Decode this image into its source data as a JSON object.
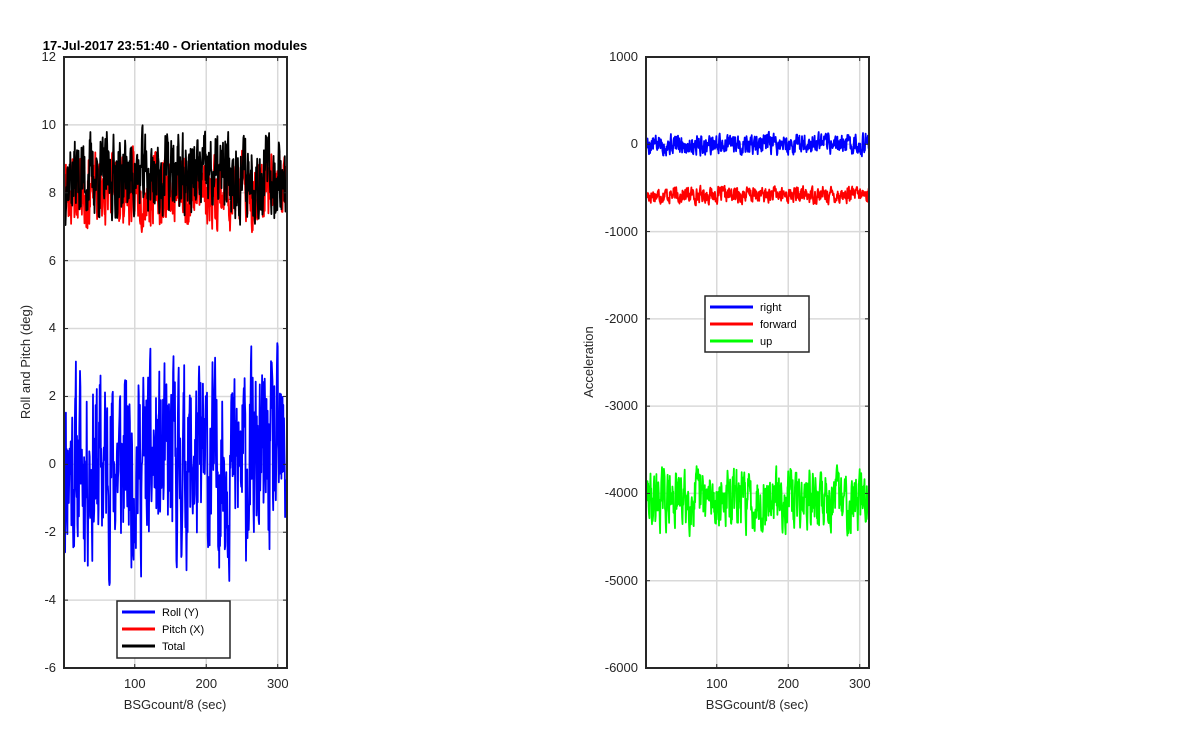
{
  "chart_data": [
    {
      "type": "line",
      "title": "17-Jul-2017 23:51:40 - Orientation modules",
      "xlabel": "BSGcount/8 (sec)",
      "ylabel": "Roll and Pitch (deg)",
      "xlim": [
        1,
        313
      ],
      "ylim": [
        -6,
        12
      ],
      "xticks": [
        "100",
        "200",
        "300"
      ],
      "yticks": [
        "-6",
        "-4",
        "-2",
        "0",
        "2",
        "4",
        "6",
        "8",
        "10",
        "12"
      ],
      "grid": true,
      "legend_position": "bottom-center",
      "series": [
        {
          "name": "Roll (Y)",
          "color": "#0000ff",
          "mean": 0,
          "amp": 4.2,
          "seed": 11,
          "approx_range": [
            -4.8,
            4.1
          ]
        },
        {
          "name": "Pitch (X)",
          "color": "#ff0000",
          "mean": 8.1,
          "amp": 1.6,
          "seed": 23,
          "approx_range": [
            5.3,
            10.3
          ]
        },
        {
          "name": "Total",
          "color": "#000000",
          "mean": 8.5,
          "amp": 1.8,
          "seed": 37,
          "approx_range": [
            5.4,
            11.2
          ]
        }
      ]
    },
    {
      "type": "line",
      "title": "",
      "xlabel": "BSGcount/8 (sec)",
      "ylabel": "Acceleration",
      "xlim": [
        1,
        313
      ],
      "ylim": [
        -6000,
        1000
      ],
      "xticks": [
        "100",
        "200",
        "300"
      ],
      "yticks": [
        "-6000",
        "-5000",
        "-4000",
        "-3000",
        "-2000",
        "-1000",
        "0",
        "1000"
      ],
      "grid": true,
      "legend_position": "center",
      "series": [
        {
          "name": "right",
          "color": "#0000ff",
          "mean": 0,
          "amp": 180,
          "seed": 5,
          "approx_range": [
            -300,
            300
          ]
        },
        {
          "name": "forward",
          "color": "#ff0000",
          "mean": -580,
          "amp": 140,
          "seed": 17,
          "approx_range": [
            -820,
            -350
          ]
        },
        {
          "name": "up",
          "color": "#00ff00",
          "mean": -4070,
          "amp": 500,
          "seed": 29,
          "approx_range": [
            -5050,
            -3250
          ]
        }
      ]
    }
  ]
}
